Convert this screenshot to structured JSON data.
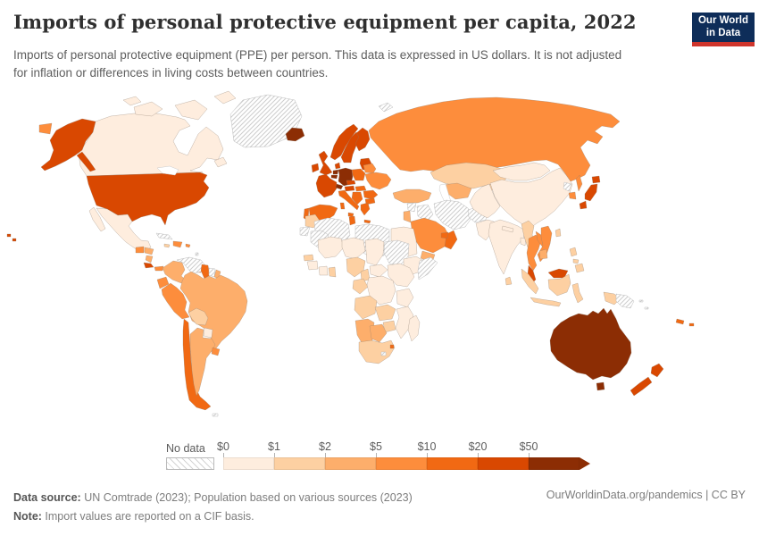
{
  "header": {
    "title": "Imports of personal protective equipment per capita, 2022",
    "subtitle": "Imports of personal protective equipment (PPE) per person. This data is expressed in US dollars. It is not adjusted for inflation or differences in living costs between countries.",
    "logo": {
      "line1": "Our World",
      "line2": "in Data",
      "bg": "#0e2d59",
      "accent": "#cf352c"
    }
  },
  "legend": {
    "no_data_label": "No data",
    "tick_labels": [
      "$0",
      "$1",
      "$2",
      "$5",
      "$10",
      "$20",
      "$50"
    ]
  },
  "chart_data": {
    "type": "heatmap",
    "subtype": "choropleth-world-map",
    "title": "Imports of personal protective equipment per capita, 2022",
    "unit": "US dollars per person",
    "bin_edges_usd": [
      0,
      1,
      2,
      5,
      10,
      20,
      50
    ],
    "bins": [
      "0-1",
      "1-2",
      "2-5",
      "5-10",
      "10-20",
      "20-50",
      "50+"
    ],
    "colors": [
      "#feedde",
      "#fdd0a2",
      "#fdae6b",
      "#fd8d3c",
      "#f16913",
      "#d94801",
      "#8c2d04"
    ],
    "no_data": "hatched",
    "countries": {
      "greenland": "no-data",
      "canada": "0-1",
      "united_states": "20-50",
      "mexico": "0-1",
      "guatemala": "5-10",
      "honduras": "2-5",
      "nicaragua": "2-5",
      "costa_rica": "20-50",
      "panama": "5-10",
      "cuba": "no-data",
      "dominican_republic": "5-10",
      "jamaica": "1-2",
      "puerto_rico": "5-10",
      "lesser_antilles": "no-data",
      "trinidad_and_tobago": "10-20",
      "colombia": "2-5",
      "venezuela": "no-data",
      "guyana": "10-20",
      "suriname": "no-data",
      "french_guiana": "2-5",
      "ecuador": "5-10",
      "peru": "5-10",
      "brazil": "2-5",
      "bolivia": "1-2",
      "paraguay": "0-1",
      "chile": "10-20",
      "argentina": "2-5",
      "uruguay": "5-10",
      "falkland_islands": "no-data",
      "iceland": "50+",
      "norway": "20-50",
      "sweden": "20-50",
      "finland": "20-50",
      "denmark": "20-50",
      "united_kingdom": "20-50",
      "ireland": "20-50",
      "netherlands": "50+",
      "belgium": "50+",
      "germany": "50+",
      "france": "20-50",
      "switzerland": "50+",
      "austria": "20-50",
      "czechia": "20-50",
      "poland": "10-20",
      "baltic_states": "20-50",
      "belarus": "5-10",
      "ukraine": "5-10",
      "hungary": "10-20",
      "romania": "10-20",
      "western_balkans": "10-20",
      "bulgaria": "10-20",
      "greece": "10-20",
      "italy": "10-20",
      "spain": "10-20",
      "portugal": "10-20",
      "svalbard": "no-data",
      "russia": "5-10",
      "turkey": "2-5",
      "syria": "no-data",
      "iraq": "no-data",
      "jordan": "2-5",
      "saudi_arabia": "5-10",
      "yemen": "2-5",
      "oman": "10-20",
      "united_arab_emirates": "10-20",
      "iran": "no-data",
      "afghanistan": "no-data",
      "pakistan": "0-1",
      "kazakhstan": "1-2",
      "uzbekistan": "2-5",
      "kyrgyzstan": "1-2",
      "india": "0-1",
      "sri_lanka": "1-2",
      "nepal": "0-1",
      "bangladesh": "0-1",
      "china": "0-1",
      "mongolia": "0-1",
      "north_korea": "no-data",
      "south_korea": "5-10",
      "japan": "20-50",
      "taiwan": "1-2",
      "myanmar": "1-2",
      "thailand": "5-10",
      "laos": "5-10",
      "vietnam": "5-10",
      "cambodia": "2-5",
      "malaysia": "20-50",
      "indonesia": "1-2",
      "philippines": "1-2",
      "papua_new_guinea": "no-data",
      "solomon_islands": "no-data",
      "australia": "50+",
      "new_zealand": "20-50",
      "new_caledonia": "10-20",
      "fiji": "10-20",
      "morocco": "1-2",
      "western_sahara": "no-data",
      "algeria": "no-data",
      "tunisia": "10-20",
      "libya": "no-data",
      "egypt": "0-1",
      "mauritania": "no-data",
      "mali": "0-1",
      "niger": "0-1",
      "chad": "0-1",
      "sudan": "no-data",
      "senegal": "1-2",
      "guinea": "0-1",
      "cote_divoire": "0-1",
      "ghana": "1-2",
      "nigeria": "1-2",
      "cameroon": "1-2",
      "central_african_republic": "0-1",
      "ethiopia": "0-1",
      "somalia": "no-data",
      "kenya": "0-1",
      "congo": "1-2",
      "democratic_republic_of_congo": "0-1",
      "tanzania": "0-1",
      "angola": "1-2",
      "zambia": "1-2",
      "mozambique": "0-1",
      "zimbabwe": "1-2",
      "namibia": "2-5",
      "botswana": "2-5",
      "south_africa": "1-2",
      "lesotho": "no-data",
      "eswatini": "10-20",
      "madagascar": "0-1"
    }
  },
  "footer": {
    "source_label": "Data source:",
    "source_text": " UN Comtrade (2023); Population based on various sources (2023)",
    "note_label": "Note:",
    "note_text": " Import values are reported on a CIF basis.",
    "credit": "OurWorldinData.org/pandemics | CC BY"
  }
}
